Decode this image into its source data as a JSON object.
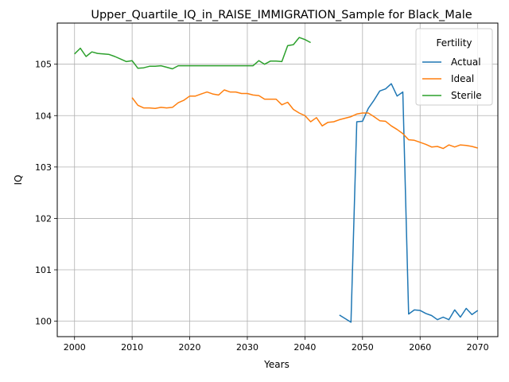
{
  "chart_data": {
    "type": "line",
    "title": "Upper_Quartile_IQ_in_RAISE_IMMIGRATION_Sample for Black_Male",
    "xlabel": "Years",
    "ylabel": "IQ",
    "xlim": [
      1997,
      2073.5
    ],
    "ylim": [
      99.7,
      105.8
    ],
    "xticks": [
      2000,
      2010,
      2020,
      2030,
      2040,
      2050,
      2060,
      2070
    ],
    "yticks": [
      100,
      101,
      102,
      103,
      104,
      105
    ],
    "grid": true,
    "legend": {
      "title": "Fertility",
      "position": "top-right"
    },
    "series": [
      {
        "name": "Actual",
        "color": "#1f77b4",
        "x": [
          2046,
          2047,
          2048,
          2049,
          2050,
          2051,
          2052,
          2053,
          2054,
          2055,
          2056,
          2057,
          2058,
          2059,
          2060,
          2061,
          2062,
          2063,
          2064,
          2065,
          2066,
          2067,
          2068,
          2069,
          2070
        ],
        "y": [
          100.12,
          100.05,
          99.98,
          103.88,
          103.89,
          104.14,
          104.3,
          104.48,
          104.52,
          104.62,
          104.38,
          104.46,
          100.14,
          100.22,
          100.21,
          100.15,
          100.11,
          100.03,
          100.08,
          100.03,
          100.22,
          100.08,
          100.25,
          100.13,
          100.21
        ]
      },
      {
        "name": "Ideal",
        "color": "#ff7f0e",
        "x": [
          2010,
          2011,
          2012,
          2013,
          2014,
          2015,
          2016,
          2017,
          2018,
          2019,
          2020,
          2021,
          2022,
          2023,
          2024,
          2025,
          2026,
          2027,
          2028,
          2029,
          2030,
          2031,
          2032,
          2033,
          2034,
          2035,
          2036,
          2037,
          2038,
          2039,
          2040,
          2041,
          2042,
          2043,
          2044,
          2045,
          2046,
          2047,
          2048,
          2049,
          2050,
          2051,
          2052,
          2053,
          2054,
          2055,
          2056,
          2057,
          2058,
          2059,
          2060,
          2061,
          2062,
          2063,
          2064,
          2065,
          2066,
          2067,
          2068,
          2069,
          2070
        ],
        "y": [
          104.35,
          104.2,
          104.15,
          104.15,
          104.14,
          104.16,
          104.15,
          104.16,
          104.25,
          104.3,
          104.38,
          104.38,
          104.42,
          104.46,
          104.42,
          104.4,
          104.5,
          104.46,
          104.46,
          104.43,
          104.43,
          104.4,
          104.39,
          104.32,
          104.32,
          104.32,
          104.21,
          104.26,
          104.12,
          104.05,
          104.0,
          103.88,
          103.96,
          103.8,
          103.87,
          103.88,
          103.92,
          103.95,
          103.98,
          104.03,
          104.05,
          104.05,
          103.98,
          103.9,
          103.89,
          103.8,
          103.73,
          103.65,
          103.53,
          103.52,
          103.48,
          103.44,
          103.39,
          103.4,
          103.36,
          103.43,
          103.39,
          103.43,
          103.42,
          103.4,
          103.37
        ]
      },
      {
        "name": "Sterile",
        "color": "#2ca02c",
        "x": [
          2000,
          2001,
          2002,
          2003,
          2004,
          2005,
          2006,
          2007,
          2008,
          2009,
          2010,
          2011,
          2012,
          2013,
          2014,
          2015,
          2016,
          2017,
          2018,
          2019,
          2020,
          2021,
          2022,
          2023,
          2024,
          2025,
          2026,
          2027,
          2028,
          2029,
          2030,
          2031,
          2032,
          2033,
          2034,
          2035,
          2036,
          2037,
          2038,
          2039,
          2040,
          2041
        ],
        "y": [
          105.2,
          105.31,
          105.15,
          105.24,
          105.21,
          105.2,
          105.19,
          105.15,
          105.1,
          105.05,
          105.07,
          104.92,
          104.93,
          104.96,
          104.96,
          104.97,
          104.94,
          104.91,
          104.97,
          104.97,
          104.97,
          104.97,
          104.97,
          104.97,
          104.97,
          104.97,
          104.97,
          104.97,
          104.97,
          104.97,
          104.97,
          104.97,
          105.07,
          105.0,
          105.06,
          105.06,
          105.05,
          105.36,
          105.38,
          105.52,
          105.48,
          105.42
        ]
      }
    ]
  }
}
